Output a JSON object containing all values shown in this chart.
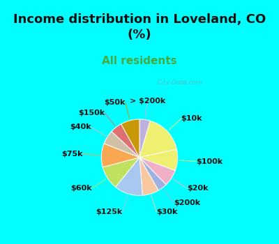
{
  "title": "Income distribution in Loveland, CO\n(%)",
  "subtitle": "All residents",
  "background_color": "#00FFFF",
  "chart_bg_color": "#d8eedc",
  "title_fontsize": 13,
  "subtitle_fontsize": 11,
  "subtitle_color": "#44aa44",
  "label_fontsize": 8,
  "watermark": "  City-Data.com",
  "labels_cw": [
    "> $200k",
    "$10k",
    "$100k",
    "$20k",
    "$200k",
    "$30k",
    "$125k",
    "$60k",
    "$75k",
    "$40k",
    "$150k",
    "$50k"
  ],
  "values_cw": [
    4.5,
    17,
    9,
    7,
    4,
    7,
    12,
    10,
    10,
    6,
    5,
    8
  ],
  "colors_cw": [
    "#c0b0e0",
    "#f0f070",
    "#f0f070",
    "#f0b0c8",
    "#a0b0e0",
    "#f8c8a0",
    "#a8c8f0",
    "#c0e060",
    "#f8a850",
    "#d0c0a8",
    "#e07070",
    "#c8980a"
  ]
}
